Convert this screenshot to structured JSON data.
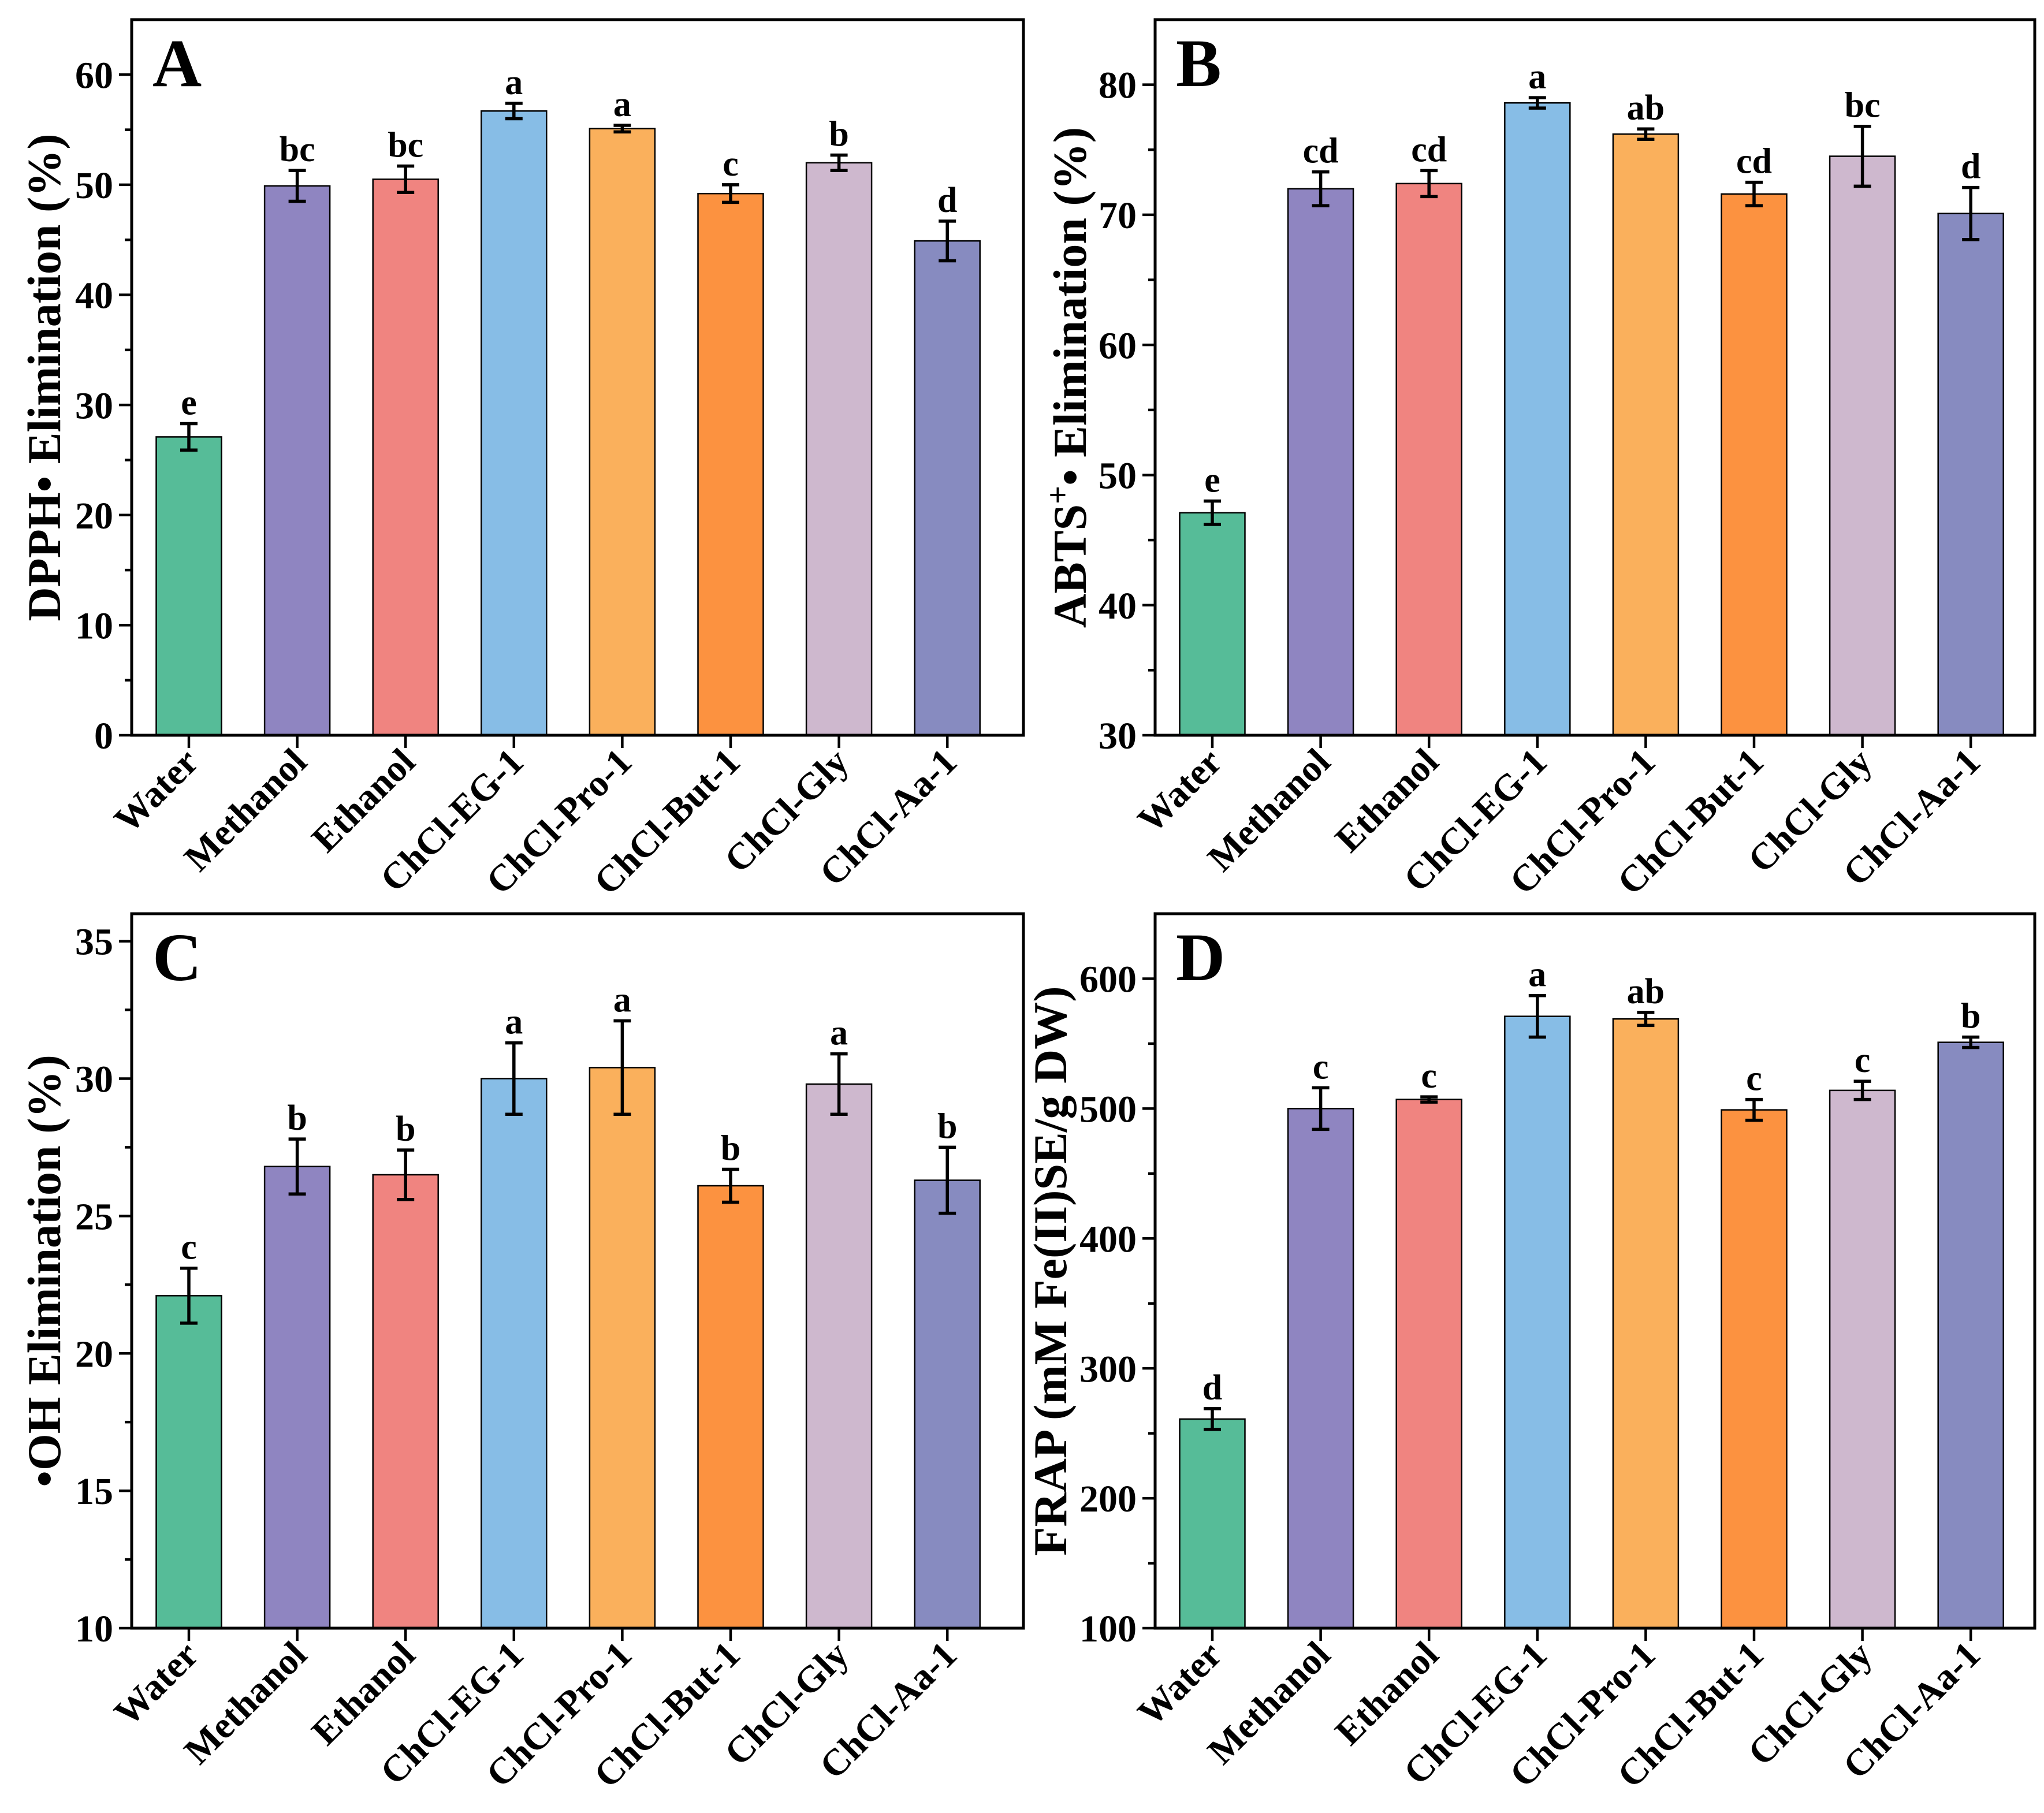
{
  "chart_data": [
    {
      "panel_label": "A",
      "type": "bar",
      "categories": [
        "Water",
        "Methanol",
        "Ethanol",
        "ChCl-EG-1",
        "ChCl-Pro-1",
        "ChCl-But-1",
        "ChCl-Gly",
        "ChCl-Aa-1"
      ],
      "values": [
        27.1,
        49.9,
        50.5,
        56.7,
        55.1,
        49.2,
        52.0,
        44.9
      ],
      "errors": [
        1.2,
        1.4,
        1.2,
        0.7,
        0.3,
        0.8,
        0.7,
        1.8
      ],
      "letters": [
        "e",
        "bc",
        "bc",
        "a",
        "a",
        "c",
        "b",
        "d"
      ],
      "ylabel": {
        "base": "DPPH• Elimination (%)"
      },
      "ylim": [
        0,
        65
      ],
      "yticks": [
        0,
        10,
        20,
        30,
        40,
        50,
        60
      ],
      "colors": [
        "#56bc98",
        "#8f85c1",
        "#f08480",
        "#87bde6",
        "#fab05c",
        "#fc9240",
        "#ceb8ce",
        "#878bc0"
      ]
    },
    {
      "panel_label": "B",
      "type": "bar",
      "categories": [
        "Water",
        "Methanol",
        "Ethanol",
        "ChCl-EG-1",
        "ChCl-Pro-1",
        "ChCl-But-1",
        "ChCl-Gly",
        "ChCl-Aa-1"
      ],
      "values": [
        47.1,
        72.0,
        72.4,
        78.6,
        76.2,
        71.6,
        74.5,
        70.1
      ],
      "errors": [
        0.9,
        1.3,
        1.0,
        0.4,
        0.4,
        0.9,
        2.3,
        2.0
      ],
      "letters": [
        "e",
        "cd",
        "cd",
        "a",
        "ab",
        "cd",
        "bc",
        "d"
      ],
      "ylabel": {
        "base": "ABTS",
        "sup": "+",
        "rest": "• Elimination (%)"
      },
      "ylim": [
        30,
        85
      ],
      "yticks": [
        30,
        40,
        50,
        60,
        70,
        80
      ],
      "colors": [
        "#56bc98",
        "#8f85c1",
        "#f08480",
        "#87bde6",
        "#fab05c",
        "#fc9240",
        "#ceb8ce",
        "#878bc0"
      ]
    },
    {
      "panel_label": "C",
      "type": "bar",
      "categories": [
        "Water",
        "Methanol",
        "Ethanol",
        "ChCl-EG-1",
        "ChCl-Pro-1",
        "ChCl-But-1",
        "ChCl-Gly",
        "ChCl-Aa-1"
      ],
      "values": [
        22.1,
        26.8,
        26.5,
        30.0,
        30.4,
        26.1,
        29.8,
        26.3
      ],
      "errors": [
        1.0,
        1.0,
        0.9,
        1.3,
        1.7,
        0.6,
        1.1,
        1.2
      ],
      "letters": [
        "c",
        "b",
        "b",
        "a",
        "a",
        "b",
        "a",
        "b"
      ],
      "ylabel": {
        "base": "•OH Elimination (%)"
      },
      "ylim": [
        10,
        36
      ],
      "yticks": [
        10,
        15,
        20,
        25,
        30,
        35
      ],
      "colors": [
        "#56bc98",
        "#8f85c1",
        "#f08480",
        "#87bde6",
        "#fab05c",
        "#fc9240",
        "#ceb8ce",
        "#878bc0"
      ]
    },
    {
      "panel_label": "D",
      "type": "bar",
      "categories": [
        "Water",
        "Methanol",
        "Ethanol",
        "ChCl-EG-1",
        "ChCl-Pro-1",
        "ChCl-But-1",
        "ChCl-Gly",
        "ChCl-Aa-1"
      ],
      "values": [
        261,
        500,
        507,
        571,
        569,
        499,
        514,
        551
      ],
      "errors": [
        8,
        16,
        2,
        16,
        5,
        8,
        7,
        4
      ],
      "letters": [
        "d",
        "c",
        "c",
        "a",
        "ab",
        "c",
        "c",
        "b"
      ],
      "ylabel": {
        "base": "FRAP (mM Fe(II)SE/g DW)"
      },
      "ylim": [
        100,
        650
      ],
      "yticks": [
        100,
        200,
        300,
        400,
        500,
        600
      ],
      "colors": [
        "#56bc98",
        "#8f85c1",
        "#f08480",
        "#87bde6",
        "#fab05c",
        "#fc9240",
        "#ceb8ce",
        "#878bc0"
      ]
    }
  ]
}
